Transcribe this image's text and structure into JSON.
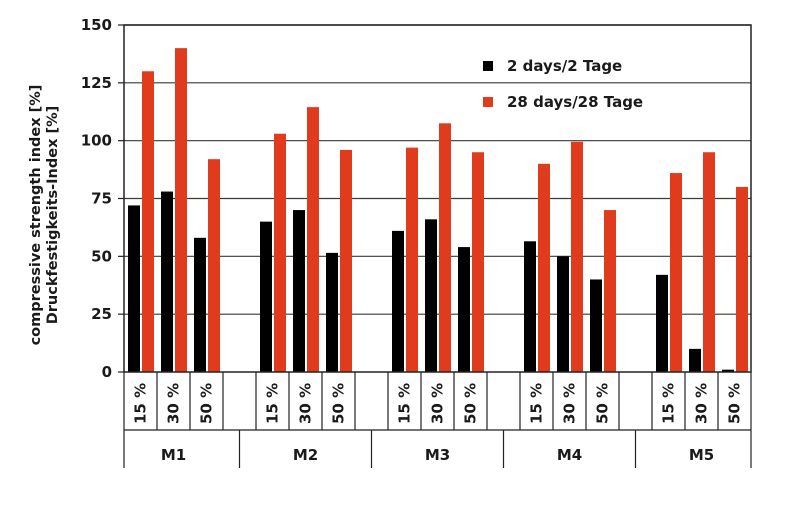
{
  "chart_data": {
    "type": "bar",
    "ylabel": [
      "compressive strength index [%]",
      "Druckfestigkeits-Index [%]"
    ],
    "ylim": [
      0,
      150
    ],
    "yticks": [
      0,
      25,
      50,
      75,
      100,
      125,
      150
    ],
    "grid": "horizontal",
    "legend_position": "top-right",
    "groups": [
      {
        "label": "M1",
        "categories": [
          "15 %",
          "30 %",
          "50 %"
        ]
      },
      {
        "label": "M2",
        "categories": [
          "15 %",
          "30 %",
          "50 %"
        ]
      },
      {
        "label": "M3",
        "categories": [
          "15 %",
          "30 %",
          "50 %"
        ]
      },
      {
        "label": "M4",
        "categories": [
          "15 %",
          "30 %",
          "50 %"
        ]
      },
      {
        "label": "M5",
        "categories": [
          "15 %",
          "30 %",
          "50 %"
        ]
      }
    ],
    "series": [
      {
        "name": "2 days/2 Tage",
        "color": "#000000",
        "values": [
          72,
          78,
          58,
          65,
          70,
          51.5,
          61,
          66,
          54,
          56.5,
          50,
          40,
          42,
          10,
          1
        ]
      },
      {
        "name": "28 days/28 Tage",
        "color": "#e13b1e",
        "values": [
          130,
          140,
          92,
          103,
          114.5,
          96,
          97,
          107.5,
          95,
          90,
          99.5,
          70,
          86,
          95,
          80
        ]
      }
    ]
  }
}
